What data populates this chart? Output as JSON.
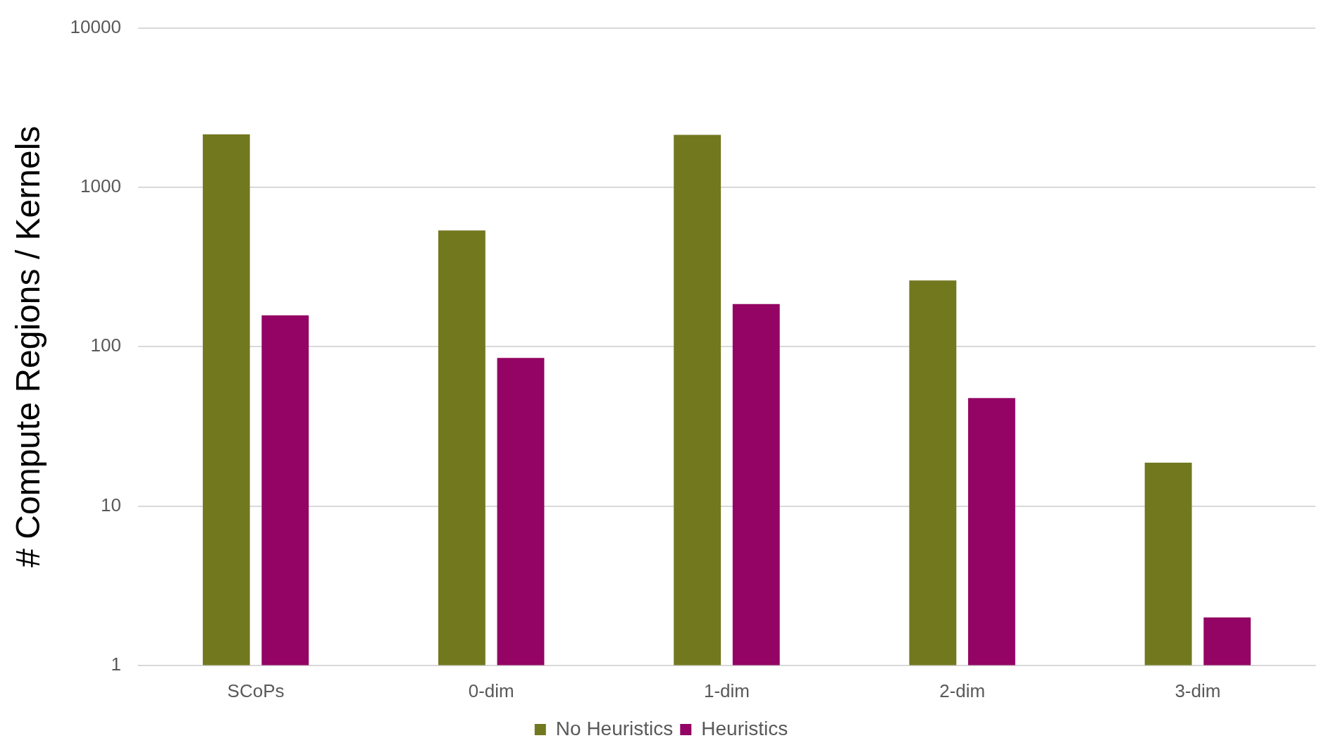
{
  "chart_data": {
    "type": "bar",
    "ylabel": "# Compute Regions / Kernels",
    "categories": [
      "SCoPs",
      "0-dim",
      "1-dim",
      "2-dim",
      "3-dim"
    ],
    "series": [
      {
        "name": "No Heuristics",
        "color": "#72781e",
        "values": [
          2150,
          535,
          2130,
          260,
          18.7
        ]
      },
      {
        "name": "Heuristics",
        "color": "#930464",
        "values": [
          157,
          85,
          185,
          47.5,
          2
        ]
      }
    ],
    "log": true,
    "ylim": [
      1,
      10000
    ],
    "yticks": [
      1,
      10,
      100,
      1000,
      10000
    ],
    "grid": "y",
    "legend": "bottom"
  }
}
